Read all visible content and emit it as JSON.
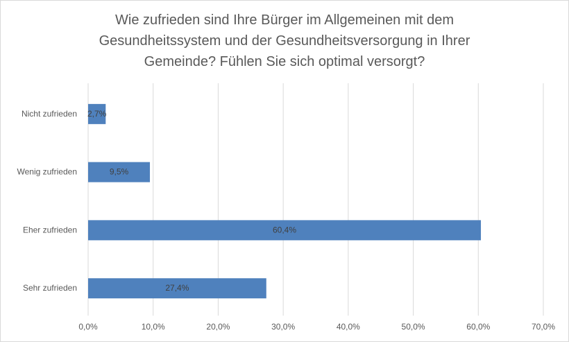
{
  "chart_data": {
    "type": "bar",
    "orientation": "horizontal",
    "title_lines": [
      "Wie zufrieden sind Ihre Bürger im Allgemeinen mit dem",
      "Gesundheitssystem und der Gesundheitsversorgung in Ihrer",
      "Gemeinde? Fühlen Sie sich optimal versorgt?"
    ],
    "categories": [
      "Nicht zufrieden",
      "Wenig zufrieden",
      "Eher zufrieden",
      "Sehr zufrieden"
    ],
    "values": [
      2.7,
      9.5,
      60.4,
      27.4
    ],
    "data_labels": [
      "2,7%",
      "9,5%",
      "60,4%",
      "27,4%"
    ],
    "xlim": [
      0,
      70
    ],
    "x_ticks": [
      "0,0%",
      "10,0%",
      "20,0%",
      "30,0%",
      "40,0%",
      "50,0%",
      "60,0%",
      "70,0%"
    ],
    "grid": true,
    "legend": "none",
    "bar_color": "#4F81BD"
  }
}
